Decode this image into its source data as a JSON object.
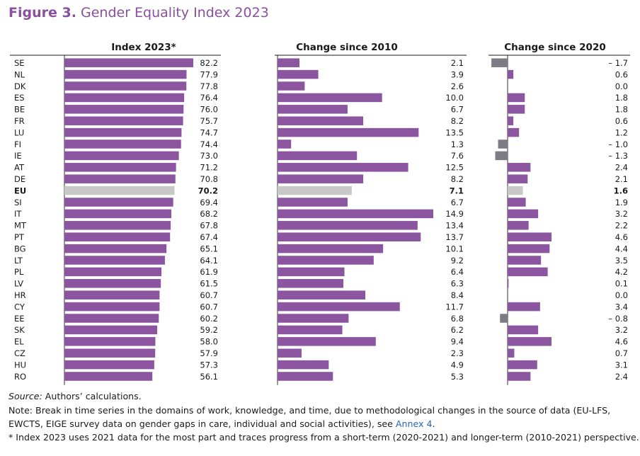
{
  "title": {
    "label": "Figure 3.",
    "text": "Gender Equality Index 2023"
  },
  "colors": {
    "bar": "#8b55a0",
    "eu": "#c8c8c8",
    "negative": "#7d7b84",
    "title": "#8a4f9d",
    "link": "#2a64b0"
  },
  "chart_data": [
    {
      "type": "bar",
      "orientation": "horizontal",
      "title": "Index 2023*",
      "categories": [
        "SE",
        "NL",
        "DK",
        "ES",
        "BE",
        "FR",
        "LU",
        "FI",
        "IE",
        "AT",
        "DE",
        "EU",
        "SI",
        "IT",
        "MT",
        "PT",
        "BG",
        "LT",
        "PL",
        "LV",
        "HR",
        "CY",
        "EE",
        "SK",
        "EL",
        "CZ",
        "HU",
        "RO"
      ],
      "values": [
        82.2,
        77.9,
        77.8,
        76.4,
        76.0,
        75.7,
        74.7,
        74.4,
        73.0,
        71.2,
        70.8,
        70.2,
        69.4,
        68.2,
        67.8,
        67.4,
        65.1,
        64.1,
        61.9,
        61.5,
        60.7,
        60.7,
        60.2,
        59.2,
        58.0,
        57.9,
        57.3,
        56.1
      ],
      "labels": [
        "82.2",
        "77.9",
        "77.8",
        "76.4",
        "76.0",
        "75.7",
        "74.7",
        "74.4",
        "73.0",
        "71.2",
        "70.8",
        "70.2",
        "69.4",
        "68.2",
        "67.8",
        "67.4",
        "65.1",
        "64.1",
        "61.9",
        "61.5",
        "60.7",
        "60.7",
        "60.2",
        "59.2",
        "58.0",
        "57.9",
        "57.3",
        "56.1"
      ],
      "xlim": [
        0,
        82.2
      ],
      "highlight": "EU"
    },
    {
      "type": "bar",
      "orientation": "horizontal",
      "title": "Change since 2010",
      "categories": [
        "SE",
        "NL",
        "DK",
        "ES",
        "BE",
        "FR",
        "LU",
        "FI",
        "IE",
        "AT",
        "DE",
        "EU",
        "SI",
        "IT",
        "MT",
        "PT",
        "BG",
        "LT",
        "PL",
        "LV",
        "HR",
        "CY",
        "EE",
        "SK",
        "EL",
        "CZ",
        "HU",
        "RO"
      ],
      "values": [
        2.1,
        3.9,
        2.6,
        10.0,
        6.7,
        8.2,
        13.5,
        1.3,
        7.6,
        12.5,
        8.2,
        7.1,
        6.7,
        14.9,
        13.4,
        13.7,
        10.1,
        9.2,
        6.4,
        6.3,
        8.4,
        11.7,
        6.8,
        6.2,
        9.4,
        2.3,
        4.9,
        5.3
      ],
      "labels": [
        "2.1",
        "3.9",
        "2.6",
        "10.0",
        "6.7",
        "8.2",
        "13.5",
        "1.3",
        "7.6",
        "12.5",
        "8.2",
        "7.1",
        "6.7",
        "14.9",
        "13.4",
        "13.7",
        "10.1",
        "9.2",
        "6.4",
        "6.3",
        "8.4",
        "11.7",
        "6.8",
        "6.2",
        "9.4",
        "2.3",
        "4.9",
        "5.3"
      ],
      "xlim": [
        0,
        14.9
      ],
      "highlight": "EU"
    },
    {
      "type": "bar",
      "orientation": "horizontal",
      "title": "Change since 2020",
      "categories": [
        "SE",
        "NL",
        "DK",
        "ES",
        "BE",
        "FR",
        "LU",
        "FI",
        "IE",
        "AT",
        "DE",
        "EU",
        "SI",
        "IT",
        "MT",
        "PT",
        "BG",
        "LT",
        "PL",
        "LV",
        "HR",
        "CY",
        "EE",
        "SK",
        "EL",
        "CZ",
        "HU",
        "RO"
      ],
      "values": [
        -1.7,
        0.6,
        0.0,
        1.8,
        1.8,
        0.6,
        1.2,
        -1.0,
        -1.3,
        2.4,
        2.1,
        1.6,
        1.9,
        3.2,
        2.2,
        4.6,
        4.4,
        3.5,
        4.2,
        0.1,
        0.0,
        3.4,
        -0.8,
        3.2,
        4.6,
        0.7,
        3.1,
        2.4
      ],
      "labels": [
        "– 1.7",
        "0.6",
        "0.0",
        "1.8",
        "1.8",
        "0.6",
        "1.2",
        "– 1.0",
        "– 1.3",
        "2.4",
        "2.1",
        "1.6",
        "1.9",
        "3.2",
        "2.2",
        "4.6",
        "4.4",
        "3.5",
        "4.2",
        "0.1",
        "0.0",
        "3.4",
        "– 0.8",
        "3.2",
        "4.6",
        "0.7",
        "3.1",
        "2.4"
      ],
      "xlim": [
        -1.7,
        4.6
      ],
      "highlight": "EU"
    }
  ],
  "footnotes": {
    "source_label": "Source:",
    "source_text": " Authors’ calculations.",
    "note_line1": "Note: Break in time series in the domains of work, knowledge, and time, due to methodological changes in the source of data (EU-LFS,",
    "note_line2_pre": "EWCTS, EIGE survey data on gender gaps in care, individual and social activities), see ",
    "note_line2_link": "Annex 4",
    "note_line2_post": ".",
    "note_line3": "* Index 2023 uses 2021 data for the most part and traces progress from a short-term (2020-2021) and longer-term (2010-2021) perspective."
  }
}
